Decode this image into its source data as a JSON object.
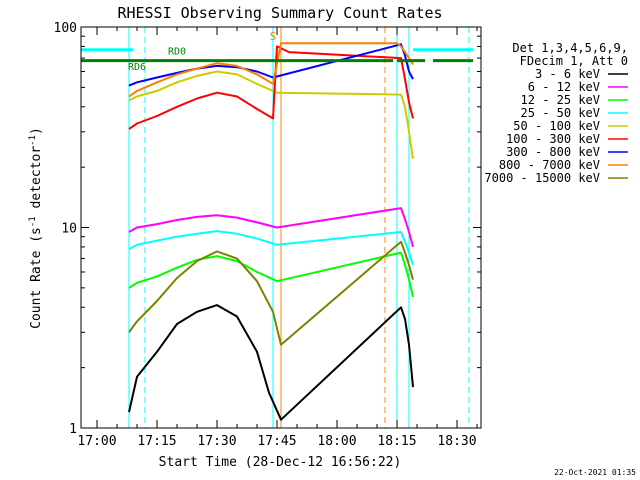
{
  "chart_data": {
    "type": "line",
    "title": "RHESSI Observing Summary Count Rates",
    "xlabel": "Start Time (28-Dec-12 16:56:22)",
    "ylabel_main": "Count Rate (s",
    "ylabel_sup": "-1",
    "ylabel_mid": " detector",
    "ylabel_end": ")",
    "yscale": "log",
    "xlim": [
      "16:56",
      "18:36"
    ],
    "ylim": [
      1,
      100
    ],
    "x_ticks": [
      "17:00",
      "17:15",
      "17:30",
      "17:45",
      "18:00",
      "18:15",
      "18:30"
    ],
    "y_ticks": [
      "1",
      "10",
      "100"
    ],
    "legend_header": [
      "Det 1,3,4,5,6,9,",
      "FDecim 1, Att 0"
    ],
    "series": [
      {
        "name": "3 - 6 keV",
        "color": "#000000",
        "points": [
          [
            "17:08",
            1.2
          ],
          [
            "17:10",
            1.8
          ],
          [
            "17:15",
            2.4
          ],
          [
            "17:20",
            3.3
          ],
          [
            "17:25",
            3.8
          ],
          [
            "17:30",
            4.1
          ],
          [
            "17:35",
            3.6
          ],
          [
            "17:40",
            2.4
          ],
          [
            "17:43",
            1.5
          ],
          [
            "17:46",
            1.1
          ],
          [
            "18:16",
            4.0
          ],
          [
            "18:17",
            3.5
          ],
          [
            "18:18",
            2.6
          ],
          [
            "18:19",
            1.6
          ]
        ]
      },
      {
        "name": "6 - 12 keV",
        "color": "#ff00ff",
        "points": [
          [
            "17:08",
            9.5
          ],
          [
            "17:10",
            10.0
          ],
          [
            "17:15",
            10.4
          ],
          [
            "17:20",
            10.9
          ],
          [
            "17:25",
            11.3
          ],
          [
            "17:30",
            11.5
          ],
          [
            "17:35",
            11.2
          ],
          [
            "17:40",
            10.6
          ],
          [
            "17:45",
            10.0
          ],
          [
            "18:16",
            12.5
          ],
          [
            "18:17",
            11.0
          ],
          [
            "18:18",
            9.5
          ],
          [
            "18:19",
            8.0
          ]
        ]
      },
      {
        "name": "12 - 25 keV",
        "color": "#00ff00",
        "points": [
          [
            "17:08",
            5.0
          ],
          [
            "17:10",
            5.3
          ],
          [
            "17:15",
            5.7
          ],
          [
            "17:20",
            6.3
          ],
          [
            "17:25",
            6.9
          ],
          [
            "17:30",
            7.2
          ],
          [
            "17:35",
            6.8
          ],
          [
            "17:40",
            6.0
          ],
          [
            "17:45",
            5.4
          ],
          [
            "18:16",
            7.5
          ],
          [
            "18:17",
            6.5
          ],
          [
            "18:18",
            5.5
          ],
          [
            "18:19",
            4.5
          ]
        ]
      },
      {
        "name": "25 - 50 keV",
        "color": "#00ffff",
        "points": [
          [
            "17:08",
            7.8
          ],
          [
            "17:10",
            8.2
          ],
          [
            "17:15",
            8.6
          ],
          [
            "17:20",
            9.0
          ],
          [
            "17:25",
            9.3
          ],
          [
            "17:30",
            9.6
          ],
          [
            "17:35",
            9.3
          ],
          [
            "17:40",
            8.8
          ],
          [
            "17:45",
            8.2
          ],
          [
            "18:16",
            9.5
          ],
          [
            "18:17",
            8.5
          ],
          [
            "18:18",
            7.5
          ],
          [
            "18:19",
            6.5
          ]
        ]
      },
      {
        "name": "50 - 100 keV",
        "color": "#cccc00",
        "points": [
          [
            "17:08",
            43
          ],
          [
            "17:10",
            45
          ],
          [
            "17:15",
            48
          ],
          [
            "17:20",
            53
          ],
          [
            "17:25",
            57
          ],
          [
            "17:30",
            60
          ],
          [
            "17:35",
            58
          ],
          [
            "17:40",
            52
          ],
          [
            "17:45",
            47
          ],
          [
            "18:16",
            46
          ],
          [
            "18:17",
            40
          ],
          [
            "18:18",
            30
          ],
          [
            "18:19",
            22
          ]
        ]
      },
      {
        "name": "100 - 300 keV",
        "color": "#ff0000",
        "points": [
          [
            "17:08",
            31
          ],
          [
            "17:10",
            33
          ],
          [
            "17:15",
            36
          ],
          [
            "17:20",
            40
          ],
          [
            "17:25",
            44
          ],
          [
            "17:30",
            47
          ],
          [
            "17:35",
            45
          ],
          [
            "17:40",
            39
          ],
          [
            "17:44",
            35
          ],
          [
            "17:45",
            80
          ],
          [
            "17:48",
            75
          ],
          [
            "18:16",
            70
          ],
          [
            "18:17",
            55
          ],
          [
            "18:18",
            42
          ],
          [
            "18:19",
            35
          ]
        ]
      },
      {
        "name": "300 - 800 keV",
        "color": "#0000ff",
        "points": [
          [
            "17:08",
            51
          ],
          [
            "17:10",
            53
          ],
          [
            "17:15",
            56
          ],
          [
            "17:20",
            59
          ],
          [
            "17:25",
            62
          ],
          [
            "17:30",
            64
          ],
          [
            "17:35",
            63
          ],
          [
            "17:40",
            60
          ],
          [
            "17:44",
            56
          ],
          [
            "18:16",
            82
          ],
          [
            "18:17",
            72
          ],
          [
            "18:18",
            60
          ],
          [
            "18:19",
            55
          ]
        ]
      },
      {
        "name": "800 - 7000 keV",
        "color": "#ff8000",
        "points": [
          [
            "17:08",
            45
          ],
          [
            "17:10",
            48
          ],
          [
            "17:15",
            53
          ],
          [
            "17:20",
            58
          ],
          [
            "17:25",
            62
          ],
          [
            "17:30",
            66
          ],
          [
            "17:35",
            64
          ],
          [
            "17:40",
            58
          ],
          [
            "17:44",
            52
          ],
          [
            "17:46",
            83
          ],
          [
            "18:15",
            83
          ],
          [
            "18:16",
            80
          ],
          [
            "18:17",
            75
          ],
          [
            "18:18",
            70
          ],
          [
            "18:19",
            65
          ]
        ]
      },
      {
        "name": "7000 - 15000 keV",
        "color": "#808000",
        "points": [
          [
            "17:08",
            3.0
          ],
          [
            "17:10",
            3.4
          ],
          [
            "17:15",
            4.3
          ],
          [
            "17:20",
            5.6
          ],
          [
            "17:25",
            6.8
          ],
          [
            "17:30",
            7.6
          ],
          [
            "17:35",
            7.0
          ],
          [
            "17:40",
            5.4
          ],
          [
            "17:44",
            3.8
          ],
          [
            "17:46",
            2.6
          ],
          [
            "18:16",
            8.5
          ],
          [
            "18:17",
            7.5
          ],
          [
            "18:18",
            6.5
          ],
          [
            "18:19",
            5.5
          ]
        ]
      }
    ],
    "annotations": {
      "rd_labels": [
        {
          "text": "RD6",
          "x": "17:10",
          "y": 61
        },
        {
          "text": "RD0",
          "x": "17:20",
          "y": 73
        }
      ],
      "s_label": {
        "text": "S",
        "x": "17:44",
        "y": 86
      },
      "bar_green": {
        "color": "#008000",
        "y": 68,
        "segments": [
          [
            "16:56",
            "17:46"
          ],
          [
            "17:46",
            "18:14"
          ],
          [
            "18:15",
            "18:22"
          ],
          [
            "18:24",
            "18:34"
          ]
        ]
      },
      "bar_cyan": {
        "color": "#00ffff",
        "y": 77,
        "segments": [
          [
            "16:56",
            "17:09"
          ],
          [
            "18:19",
            "18:34"
          ]
        ]
      },
      "vline_cyan_solid": [
        "16:56",
        "17:08",
        "17:44",
        "18:15",
        "18:18"
      ],
      "vline_cyan_dashed": [
        "17:12",
        "18:33"
      ],
      "vline_orange_solid": [
        "17:46"
      ],
      "vline_orange_dashed": [
        "18:12"
      ]
    }
  },
  "footer": {
    "timestamp": "22-Oct-2021 01:35"
  }
}
